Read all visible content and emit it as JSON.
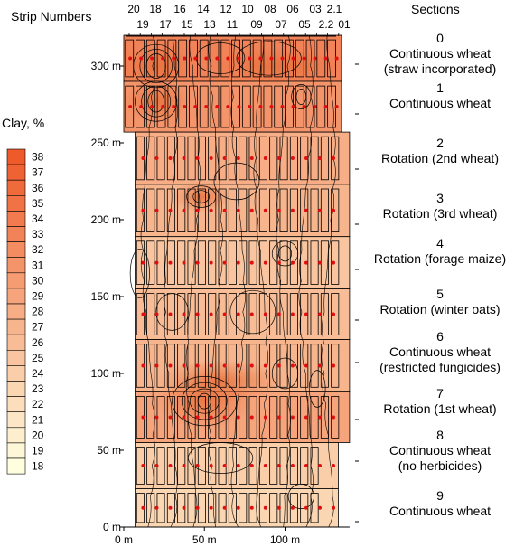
{
  "chart_data": {
    "type": "heatmap",
    "title_strips": "Strip Numbers",
    "title_sections": "Sections",
    "legend_title": "Clay, %",
    "colorbar": {
      "values": [
        38,
        37,
        36,
        35,
        34,
        33,
        32,
        31,
        30,
        29,
        28,
        27,
        26,
        25,
        24,
        23,
        22,
        21,
        20,
        19,
        18
      ],
      "low_color": "#ffffe0",
      "high_color": "#ee5a2a"
    },
    "strip_numbers_top_row": [
      "20",
      "18",
      "16",
      "14",
      "12",
      "10",
      "08",
      "06",
      "03",
      "2.1"
    ],
    "strip_numbers_bottom_row": [
      "19",
      "17",
      "15",
      "13",
      "11",
      "09",
      "07",
      "05",
      "2.2",
      "01"
    ],
    "y_axis": {
      "ticks": [
        0,
        50,
        100,
        150,
        200,
        250,
        300
      ],
      "labels": [
        "0 m",
        "50 m",
        "100 m",
        "150 m",
        "200 m",
        "250 m",
        "300 m"
      ],
      "range": [
        0,
        320
      ]
    },
    "x_axis": {
      "ticks": [
        0,
        50,
        100
      ],
      "labels": [
        "0 m",
        "50 m",
        "100 m"
      ],
      "range": [
        0,
        135
      ]
    },
    "sections": [
      {
        "number": "0",
        "name": "Continuous wheat",
        "name2": "(straw incorporated)"
      },
      {
        "number": "1",
        "name": "Continuous wheat",
        "name2": ""
      },
      {
        "number": "2",
        "name": "Rotation (2nd wheat)",
        "name2": ""
      },
      {
        "number": "3",
        "name": "Rotation (3rd wheat)",
        "name2": ""
      },
      {
        "number": "4",
        "name": "Rotation (forage maize)",
        "name2": ""
      },
      {
        "number": "5",
        "name": "Rotation (winter oats)",
        "name2": ""
      },
      {
        "number": "6",
        "name": "Continuous wheat",
        "name2": "(restricted fungicides)"
      },
      {
        "number": "7",
        "name": "Rotation (1st wheat)",
        "name2": ""
      },
      {
        "number": "8",
        "name": "Continuous wheat",
        "name2": "(no herbicides)"
      },
      {
        "number": "9",
        "name": "Continuous wheat",
        "name2": ""
      }
    ],
    "section_clay_estimates": [
      33,
      31,
      28,
      27,
      25,
      26,
      27,
      29,
      24,
      23
    ]
  }
}
